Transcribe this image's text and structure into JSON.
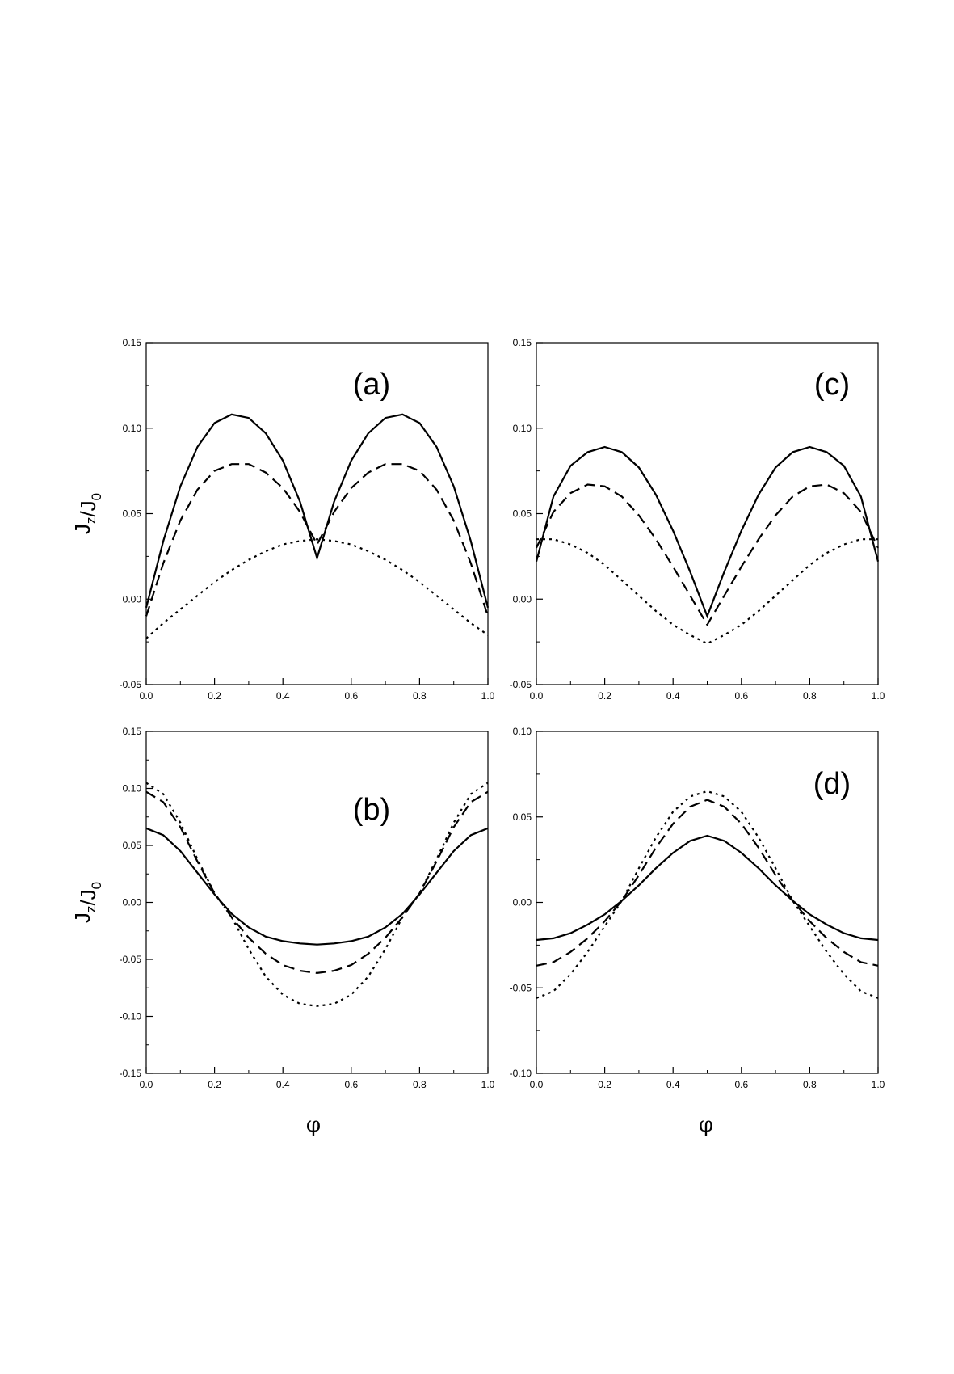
{
  "chart_data": [
    {
      "panel": "(a)",
      "type": "line",
      "xlim": [
        0.0,
        1.0
      ],
      "ylim": [
        -0.05,
        0.15
      ],
      "x_ticks": [
        "0.0",
        "0.2",
        "0.4",
        "0.6",
        "0.8",
        "1.0"
      ],
      "y_ticks": [
        "-0.05",
        "0.00",
        "0.05",
        "0.10",
        "0.15"
      ],
      "ylabel": "J_z/J_0",
      "xlabel": "",
      "series": [
        {
          "style": "solid",
          "x": [
            0.0,
            0.05,
            0.1,
            0.15,
            0.2,
            0.25,
            0.3,
            0.35,
            0.4,
            0.45,
            0.5,
            0.55,
            0.6,
            0.65,
            0.7,
            0.75,
            0.8,
            0.85,
            0.9,
            0.95,
            1.0
          ],
          "y": [
            -0.005,
            0.034,
            0.066,
            0.089,
            0.103,
            0.108,
            0.106,
            0.097,
            0.081,
            0.057,
            0.024,
            0.057,
            0.081,
            0.097,
            0.106,
            0.108,
            0.103,
            0.089,
            0.066,
            0.034,
            -0.005
          ]
        },
        {
          "style": "dashed",
          "x": [
            0.0,
            0.05,
            0.1,
            0.15,
            0.2,
            0.25,
            0.3,
            0.35,
            0.4,
            0.45,
            0.5,
            0.55,
            0.6,
            0.65,
            0.7,
            0.75,
            0.8,
            0.85,
            0.9,
            0.95,
            1.0
          ],
          "y": [
            -0.01,
            0.021,
            0.046,
            0.064,
            0.075,
            0.079,
            0.079,
            0.074,
            0.065,
            0.051,
            0.032,
            0.051,
            0.065,
            0.074,
            0.079,
            0.079,
            0.075,
            0.064,
            0.046,
            0.021,
            -0.01
          ]
        },
        {
          "style": "dotted",
          "x": [
            0.0,
            0.05,
            0.1,
            0.15,
            0.2,
            0.25,
            0.3,
            0.35,
            0.4,
            0.45,
            0.5,
            0.55,
            0.6,
            0.65,
            0.7,
            0.75,
            0.8,
            0.85,
            0.9,
            0.95,
            1.0
          ],
          "y": [
            -0.023,
            -0.014,
            -0.006,
            0.002,
            0.01,
            0.017,
            0.023,
            0.028,
            0.032,
            0.034,
            0.035,
            0.034,
            0.032,
            0.028,
            0.023,
            0.017,
            0.01,
            0.002,
            -0.006,
            -0.014,
            -0.021
          ]
        }
      ]
    },
    {
      "panel": "(b)",
      "type": "line",
      "xlim": [
        0.0,
        1.0
      ],
      "ylim": [
        -0.15,
        0.15
      ],
      "x_ticks": [
        "0.0",
        "0.2",
        "0.4",
        "0.6",
        "0.8",
        "1.0"
      ],
      "y_ticks": [
        "-0.15",
        "-0.10",
        "-0.05",
        "0.00",
        "0.05",
        "0.10",
        "0.15"
      ],
      "ylabel": "J_z/J_0",
      "xlabel": "φ",
      "series": [
        {
          "style": "solid",
          "x": [
            0.0,
            0.05,
            0.1,
            0.15,
            0.2,
            0.25,
            0.3,
            0.35,
            0.4,
            0.45,
            0.5,
            0.55,
            0.6,
            0.65,
            0.7,
            0.75,
            0.8,
            0.85,
            0.9,
            0.95,
            1.0
          ],
          "y": [
            0.065,
            0.059,
            0.045,
            0.026,
            0.007,
            -0.01,
            -0.022,
            -0.03,
            -0.034,
            -0.036,
            -0.037,
            -0.036,
            -0.034,
            -0.03,
            -0.022,
            -0.01,
            0.007,
            0.026,
            0.045,
            0.059,
            0.065
          ]
        },
        {
          "style": "dashed",
          "x": [
            0.0,
            0.05,
            0.1,
            0.15,
            0.2,
            0.25,
            0.3,
            0.35,
            0.4,
            0.45,
            0.5,
            0.55,
            0.6,
            0.65,
            0.7,
            0.75,
            0.8,
            0.85,
            0.9,
            0.95,
            1.0
          ],
          "y": [
            0.097,
            0.088,
            0.066,
            0.036,
            0.008,
            -0.013,
            -0.031,
            -0.045,
            -0.055,
            -0.06,
            -0.062,
            -0.06,
            -0.055,
            -0.045,
            -0.031,
            -0.013,
            0.008,
            0.036,
            0.066,
            0.088,
            0.097
          ]
        },
        {
          "style": "dotted",
          "x": [
            0.0,
            0.05,
            0.1,
            0.15,
            0.2,
            0.25,
            0.3,
            0.35,
            0.4,
            0.45,
            0.5,
            0.55,
            0.6,
            0.65,
            0.7,
            0.75,
            0.8,
            0.85,
            0.9,
            0.95,
            1.0
          ],
          "y": [
            0.105,
            0.095,
            0.07,
            0.038,
            0.008,
            -0.013,
            -0.041,
            -0.065,
            -0.081,
            -0.089,
            -0.091,
            -0.089,
            -0.081,
            -0.065,
            -0.041,
            -0.013,
            0.008,
            0.038,
            0.07,
            0.095,
            0.105
          ]
        }
      ]
    },
    {
      "panel": "(c)",
      "type": "line",
      "xlim": [
        0.0,
        1.0
      ],
      "ylim": [
        -0.05,
        0.15
      ],
      "x_ticks": [
        "0.0",
        "0.2",
        "0.4",
        "0.6",
        "0.8",
        "1.0"
      ],
      "y_ticks": [
        "-0.05",
        "0.00",
        "0.05",
        "0.10",
        "0.15"
      ],
      "ylabel": "",
      "xlabel": "",
      "series": [
        {
          "style": "solid",
          "x": [
            0.0,
            0.05,
            0.1,
            0.15,
            0.2,
            0.25,
            0.3,
            0.35,
            0.4,
            0.45,
            0.5,
            0.55,
            0.6,
            0.65,
            0.7,
            0.75,
            0.8,
            0.85,
            0.9,
            0.95,
            1.0
          ],
          "y": [
            0.022,
            0.06,
            0.078,
            0.086,
            0.089,
            0.086,
            0.077,
            0.061,
            0.04,
            0.016,
            -0.01,
            0.016,
            0.04,
            0.061,
            0.077,
            0.086,
            0.089,
            0.086,
            0.078,
            0.06,
            0.022
          ]
        },
        {
          "style": "dashed",
          "x": [
            0.0,
            0.05,
            0.1,
            0.15,
            0.2,
            0.25,
            0.3,
            0.35,
            0.4,
            0.45,
            0.5,
            0.55,
            0.6,
            0.65,
            0.7,
            0.75,
            0.8,
            0.85,
            0.9,
            0.95,
            1.0
          ],
          "y": [
            0.03,
            0.051,
            0.062,
            0.067,
            0.066,
            0.06,
            0.049,
            0.035,
            0.019,
            0.002,
            -0.015,
            0.002,
            0.019,
            0.035,
            0.049,
            0.06,
            0.066,
            0.067,
            0.062,
            0.051,
            0.03
          ]
        },
        {
          "style": "dotted",
          "x": [
            0.0,
            0.05,
            0.1,
            0.15,
            0.2,
            0.25,
            0.3,
            0.35,
            0.4,
            0.45,
            0.5,
            0.55,
            0.6,
            0.65,
            0.7,
            0.75,
            0.8,
            0.85,
            0.9,
            0.95,
            1.0
          ],
          "y": [
            0.035,
            0.035,
            0.032,
            0.027,
            0.02,
            0.011,
            0.002,
            -0.007,
            -0.015,
            -0.021,
            -0.026,
            -0.021,
            -0.015,
            -0.007,
            0.002,
            0.011,
            0.02,
            0.027,
            0.032,
            0.035,
            0.035
          ]
        }
      ]
    },
    {
      "panel": "(d)",
      "type": "line",
      "xlim": [
        0.0,
        1.0
      ],
      "ylim": [
        -0.1,
        0.1
      ],
      "x_ticks": [
        "0.0",
        "0.2",
        "0.4",
        "0.6",
        "0.8",
        "1.0"
      ],
      "y_ticks": [
        "-0.10",
        "-0.05",
        "0.00",
        "0.05",
        "0.10"
      ],
      "ylabel": "",
      "xlabel": "φ",
      "series": [
        {
          "style": "solid",
          "x": [
            0.0,
            0.05,
            0.1,
            0.15,
            0.2,
            0.25,
            0.3,
            0.35,
            0.4,
            0.45,
            0.5,
            0.55,
            0.6,
            0.65,
            0.7,
            0.75,
            0.8,
            0.85,
            0.9,
            0.95,
            1.0
          ],
          "y": [
            -0.022,
            -0.021,
            -0.018,
            -0.013,
            -0.007,
            0.001,
            0.01,
            0.02,
            0.029,
            0.036,
            0.039,
            0.036,
            0.029,
            0.02,
            0.01,
            0.001,
            -0.007,
            -0.013,
            -0.018,
            -0.021,
            -0.022
          ]
        },
        {
          "style": "dashed",
          "x": [
            0.0,
            0.05,
            0.1,
            0.15,
            0.2,
            0.25,
            0.3,
            0.35,
            0.4,
            0.45,
            0.5,
            0.55,
            0.6,
            0.65,
            0.7,
            0.75,
            0.8,
            0.85,
            0.9,
            0.95,
            1.0
          ],
          "y": [
            -0.037,
            -0.035,
            -0.029,
            -0.021,
            -0.011,
            0.001,
            0.016,
            0.032,
            0.046,
            0.056,
            0.06,
            0.056,
            0.046,
            0.032,
            0.016,
            0.001,
            -0.011,
            -0.021,
            -0.029,
            -0.035,
            -0.037
          ]
        },
        {
          "style": "dotted",
          "x": [
            0.0,
            0.05,
            0.1,
            0.15,
            0.2,
            0.25,
            0.3,
            0.35,
            0.4,
            0.45,
            0.5,
            0.55,
            0.6,
            0.65,
            0.7,
            0.75,
            0.8,
            0.85,
            0.9,
            0.95,
            1.0
          ],
          "y": [
            -0.056,
            -0.052,
            -0.042,
            -0.029,
            -0.014,
            0.001,
            0.02,
            0.038,
            0.053,
            0.062,
            0.065,
            0.062,
            0.053,
            0.038,
            0.02,
            0.001,
            -0.014,
            -0.029,
            -0.042,
            -0.052,
            -0.056
          ]
        }
      ]
    }
  ]
}
